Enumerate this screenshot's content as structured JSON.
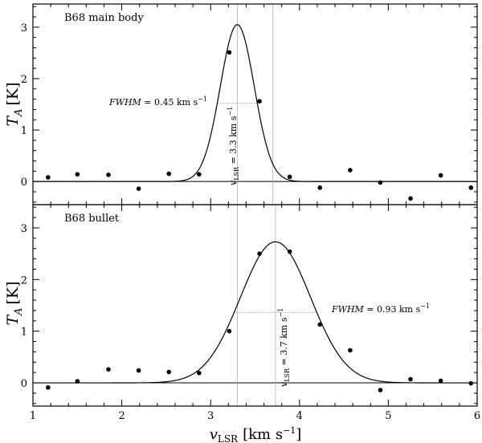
{
  "chart_data": {
    "type": "scatter",
    "x_axis": {
      "title_main": "v",
      "title_sub": "LSR",
      "title_unit": "[km s",
      "title_sup": "−1",
      "title_close": "]",
      "range": [
        1,
        6
      ],
      "ticks": [
        "1",
        "2",
        "3",
        "4",
        "5",
        "6"
      ]
    },
    "panels": [
      {
        "label": "B68 main body",
        "ylabel_main": "T",
        "ylabel_sub": "A",
        "ylabel_unit": "[K]",
        "ylim": [
          -0.45,
          3.45
        ],
        "yticks": [
          "0",
          "1",
          "2",
          "3"
        ],
        "points": [
          [
            1.17,
            0.08
          ],
          [
            1.5,
            0.14
          ],
          [
            1.85,
            0.13
          ],
          [
            2.19,
            -0.14
          ],
          [
            2.53,
            0.15
          ],
          [
            2.87,
            0.14
          ],
          [
            3.21,
            2.51
          ],
          [
            3.55,
            1.56
          ],
          [
            3.89,
            0.09
          ],
          [
            4.23,
            -0.12
          ],
          [
            4.57,
            0.22
          ],
          [
            4.91,
            -0.02
          ],
          [
            5.25,
            -0.33
          ],
          [
            5.59,
            0.12
          ],
          [
            5.93,
            -0.12
          ]
        ],
        "fit": {
          "center": 3.3,
          "fwhm": 0.45,
          "amplitude": 3.05
        },
        "vline_center": 3.3,
        "vline_ref": 3.7,
        "fwhm_text": "FWHM",
        "fwhm_value": " = 0.45 km s",
        "fwhm_sup": "−1",
        "vlsr_main": "v",
        "vlsr_sub": "LSR",
        "vlsr_value": " = 3.3 km s",
        "vlsr_sup": "−1"
      },
      {
        "label": "B68 bullet",
        "ylabel_main": "T",
        "ylabel_sub": "A",
        "ylabel_unit": "[K]",
        "ylim": [
          -0.45,
          3.45
        ],
        "yticks": [
          "0",
          "1",
          "2",
          "3"
        ],
        "points": [
          [
            1.17,
            -0.09
          ],
          [
            1.5,
            0.03
          ],
          [
            1.85,
            0.26
          ],
          [
            2.19,
            0.24
          ],
          [
            2.53,
            0.21
          ],
          [
            2.87,
            0.19
          ],
          [
            3.21,
            1.0
          ],
          [
            3.55,
            2.5
          ],
          [
            3.89,
            2.54
          ],
          [
            4.23,
            1.13
          ],
          [
            4.57,
            0.63
          ],
          [
            4.91,
            -0.14
          ],
          [
            5.25,
            0.07
          ],
          [
            5.59,
            0.04
          ],
          [
            5.93,
            -0.01
          ]
        ],
        "fit": {
          "center": 3.73,
          "fwhm": 0.93,
          "amplitude": 2.73
        },
        "vline_center": 3.73,
        "vline_ref": 3.3,
        "fwhm_text": "FWHM",
        "fwhm_value": " = 0.93 km s",
        "fwhm_sup": "−1",
        "vlsr_main": "v",
        "vlsr_sub": "LSR",
        "vlsr_value": " = 3.7 km s",
        "vlsr_sup": "−1"
      }
    ]
  }
}
